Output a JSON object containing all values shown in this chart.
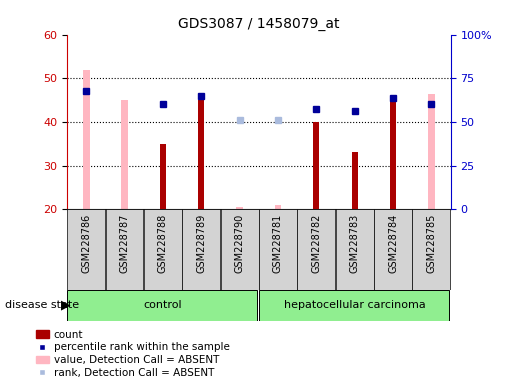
{
  "title": "GDS3087 / 1458079_at",
  "samples": [
    "GSM228786",
    "GSM228787",
    "GSM228788",
    "GSM228789",
    "GSM228790",
    "GSM228781",
    "GSM228782",
    "GSM228783",
    "GSM228784",
    "GSM228785"
  ],
  "count": [
    null,
    null,
    35,
    45,
    null,
    null,
    40,
    33,
    45,
    null
  ],
  "percentile_rank": [
    47,
    null,
    44,
    46,
    null,
    null,
    43,
    42.5,
    45.5,
    44
  ],
  "value_absent": [
    52,
    45,
    null,
    null,
    20.5,
    21,
    null,
    null,
    null,
    46.5
  ],
  "rank_absent": [
    null,
    null,
    null,
    null,
    40.5,
    40.5,
    null,
    null,
    null,
    null
  ],
  "ylim": [
    20,
    60
  ],
  "yticks_left": [
    20,
    30,
    40,
    50,
    60
  ],
  "right_tick_labels": [
    "0",
    "25",
    "50",
    "75",
    "100%"
  ],
  "bar_color_count": "#AA0000",
  "bar_color_value_absent": "#FFB6C1",
  "dot_color_percentile": "#000099",
  "dot_color_rank_absent": "#AABBDD",
  "left_axis_color": "#CC0000",
  "right_axis_color": "#0000CC",
  "legend_labels": [
    "count",
    "percentile rank within the sample",
    "value, Detection Call = ABSENT",
    "rank, Detection Call = ABSENT"
  ],
  "legend_colors": [
    "#AA0000",
    "#000099",
    "#FFB6C1",
    "#AABBDD"
  ],
  "grid_color": "black",
  "sample_box_color": "#D3D3D3",
  "control_color": "#90EE90",
  "carc_color": "#90EE90"
}
